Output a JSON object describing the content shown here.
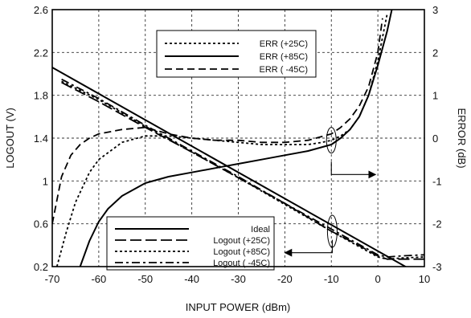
{
  "chart_data": {
    "type": "line",
    "title": "",
    "xlabel": "INPUT POWER (dBm)",
    "ylabel_left": "LOGOUT (V)",
    "ylabel_right": "ERROR (dB)",
    "xlim": [
      -70,
      10
    ],
    "ylim_left": [
      0.2,
      2.6
    ],
    "ylim_right": [
      -3,
      3
    ],
    "grid": true,
    "x_ticks": [
      "-70",
      "-60",
      "-50",
      "-40",
      "-30",
      "-20",
      "-10",
      "0",
      "10"
    ],
    "y_left_ticks": [
      "0.2",
      "0.6",
      "1",
      "1.4",
      "1.8",
      "2.2",
      "2.6"
    ],
    "y_right_ticks": [
      "-3",
      "-2",
      "-1",
      "0",
      "1",
      "2",
      "3"
    ],
    "series": [
      {
        "name": "ERR (+25C)",
        "axis": "right",
        "style": "dotted",
        "x": [
          -69,
          -67,
          -65,
          -62,
          -60,
          -55,
          -50,
          -45,
          -40,
          -35,
          -30,
          -25,
          -20,
          -15,
          -12,
          -10,
          -8,
          -6,
          -4,
          -2,
          0,
          2
        ],
        "y": [
          -3,
          -2.2,
          -1.5,
          -0.8,
          -0.5,
          -0.1,
          0.05,
          0.05,
          0.0,
          -0.05,
          -0.1,
          -0.15,
          -0.15,
          -0.15,
          -0.1,
          -0.05,
          0.05,
          0.2,
          0.5,
          1.0,
          1.8,
          2.9
        ]
      },
      {
        "name": "ERR (+85C)",
        "axis": "right",
        "style": "solid",
        "x": [
          -64,
          -62,
          -60,
          -58,
          -55,
          -50,
          -45,
          -40,
          -35,
          -30,
          -25,
          -20,
          -15,
          -10,
          -8,
          -6,
          -4,
          -2,
          0,
          2,
          3
        ],
        "y": [
          -3,
          -2.4,
          -1.95,
          -1.65,
          -1.35,
          -1.05,
          -0.9,
          -0.8,
          -0.7,
          -0.6,
          -0.5,
          -0.4,
          -0.3,
          -0.15,
          0.0,
          0.2,
          0.5,
          1.0,
          1.7,
          2.5,
          3.0
        ]
      },
      {
        "name": "ERR ( -45C)",
        "axis": "right",
        "style": "dashed",
        "x": [
          -70,
          -68,
          -66,
          -64,
          -62,
          -60,
          -55,
          -50,
          -45,
          -40,
          -35,
          -30,
          -25,
          -20,
          -15,
          -10,
          -8,
          -6,
          -4,
          -2,
          0,
          1
        ],
        "y": [
          -2.0,
          -0.9,
          -0.4,
          -0.15,
          0.0,
          0.1,
          0.2,
          0.25,
          0.1,
          0.0,
          -0.05,
          -0.05,
          -0.1,
          -0.1,
          -0.05,
          0.1,
          0.25,
          0.45,
          0.75,
          1.2,
          2.0,
          2.8
        ]
      },
      {
        "name": "Ideal",
        "axis": "left",
        "style": "solid",
        "x": [
          -70,
          10
        ],
        "y": [
          2.06,
          0.1
        ]
      },
      {
        "name": "Logout (+25C)",
        "axis": "left",
        "style": "longdash",
        "x": [
          -68,
          -60,
          -50,
          -40,
          -30,
          -20,
          -10,
          -5,
          0,
          2,
          5,
          10
        ],
        "y": [
          1.92,
          1.74,
          1.5,
          1.27,
          1.03,
          0.79,
          0.53,
          0.42,
          0.3,
          0.27,
          0.27,
          0.27
        ]
      },
      {
        "name": "Logout (+85C)",
        "axis": "left",
        "style": "dotted",
        "x": [
          -68,
          -60,
          -50,
          -40,
          -30,
          -20,
          -10,
          -5,
          0,
          2,
          5,
          10
        ],
        "y": [
          1.93,
          1.76,
          1.51,
          1.27,
          1.03,
          0.78,
          0.53,
          0.41,
          0.29,
          0.27,
          0.28,
          0.29
        ]
      },
      {
        "name": "Logout ( -45C)",
        "axis": "left",
        "style": "dashdot",
        "x": [
          -68,
          -60,
          -50,
          -40,
          -30,
          -20,
          -10,
          -5,
          0,
          2,
          5,
          10
        ],
        "y": [
          1.95,
          1.77,
          1.52,
          1.28,
          1.04,
          0.79,
          0.55,
          0.43,
          0.31,
          0.29,
          0.3,
          0.31
        ]
      }
    ],
    "legend_top": [
      "ERR (+25C)",
      "ERR (+85C)",
      "ERR ( -45C)"
    ],
    "legend_bottom": [
      "Ideal",
      "Logout (+25C)",
      "Logout (+85C)",
      "Logout ( -45C)"
    ]
  }
}
